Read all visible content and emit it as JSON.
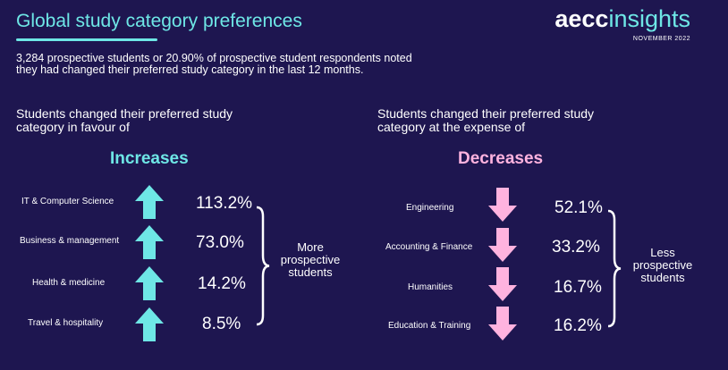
{
  "header": {
    "title": "Global study category preferences",
    "logo_brand": "aecc",
    "logo_product": "insights",
    "logo_date": "NOVEMBER 2022"
  },
  "intro": {
    "line1": "3,284 prospective students or 20.90% of prospective student respondents noted",
    "line2": "they had changed their preferred study category in the last 12 months."
  },
  "increases": {
    "heading_line1": "Students changed their preferred study",
    "heading_line2": "category in favour of",
    "label": "Increases",
    "arrow_color": "#6ee7e6",
    "items": [
      {
        "category": "IT & Computer Science",
        "value": "113.2%"
      },
      {
        "category": "Business & management",
        "value": "73.0%"
      },
      {
        "category": "Health & medicine",
        "value": "14.2%"
      },
      {
        "category": "Travel & hospitality",
        "value": "8.5%"
      }
    ],
    "note_line1": "More",
    "note_line2": "prospective",
    "note_line3": "students"
  },
  "decreases": {
    "heading_line1": "Students changed their preferred study",
    "heading_line2": "category at the expense of",
    "label": "Decreases",
    "arrow_color": "#ffb3df",
    "items": [
      {
        "category": "Engineering",
        "value": "52.1%"
      },
      {
        "category": "Accounting & Finance",
        "value": "33.2%"
      },
      {
        "category": "Humanities",
        "value": "16.7%"
      },
      {
        "category": "Education & Training",
        "value": "16.2%"
      }
    ],
    "note_line1": "Less",
    "note_line2": "prospective",
    "note_line3": "students"
  }
}
